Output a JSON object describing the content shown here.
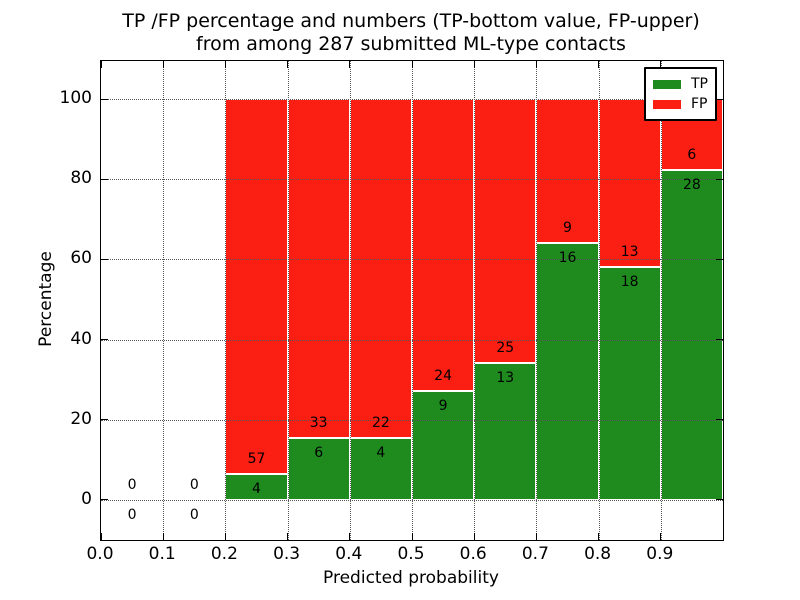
{
  "title": {
    "line1": "TP /FP percentage and numbers (TP-bottom value, FP-upper)",
    "line2": "from among 287 submitted ML-type contacts"
  },
  "legend": {
    "position": "upper right",
    "items": [
      {
        "label": "TP",
        "color": "#1f8b1f"
      },
      {
        "label": "FP",
        "color": "#fb1e13"
      }
    ]
  },
  "chart_data": {
    "type": "bar",
    "stacked": true,
    "title": "TP /FP percentage and numbers (TP-bottom value, FP-upper) from among 287 submitted ML-type contacts",
    "xlabel": "Predicted probability",
    "ylabel": "Percentage",
    "total_contacts": 287,
    "xlim": [
      0,
      1.0
    ],
    "ylim": [
      -10,
      109.5
    ],
    "grid": true,
    "bin_width": 0.1,
    "bins": [
      0.0,
      0.1,
      0.2,
      0.3,
      0.4,
      0.5,
      0.6,
      0.7,
      0.8,
      0.9
    ],
    "x_ticks": [
      {
        "value": 0.0,
        "label": "0.0"
      },
      {
        "value": 0.1,
        "label": "0.1"
      },
      {
        "value": 0.2,
        "label": "0.2"
      },
      {
        "value": 0.3,
        "label": "0.3"
      },
      {
        "value": 0.4,
        "label": "0.4"
      },
      {
        "value": 0.5,
        "label": "0.5"
      },
      {
        "value": 0.6,
        "label": "0.6"
      },
      {
        "value": 0.7,
        "label": "0.7"
      },
      {
        "value": 0.8,
        "label": "0.8"
      },
      {
        "value": 0.9,
        "label": "0.9"
      }
    ],
    "y_ticks": [
      {
        "value": 0,
        "label": "0"
      },
      {
        "value": 20,
        "label": "20"
      },
      {
        "value": 40,
        "label": "40"
      },
      {
        "value": 60,
        "label": "60"
      },
      {
        "value": 80,
        "label": "80"
      },
      {
        "value": 100,
        "label": "100"
      }
    ],
    "series": [
      {
        "name": "TP",
        "color": "#1f8b1f",
        "counts": [
          0,
          0,
          4,
          6,
          4,
          9,
          13,
          16,
          18,
          28
        ]
      },
      {
        "name": "FP",
        "color": "#fb1e13",
        "counts": [
          0,
          0,
          57,
          33,
          22,
          24,
          25,
          9,
          13,
          6
        ]
      }
    ],
    "tp_percent": [
      null,
      null,
      6.6,
      15.4,
      15.4,
      27.3,
      34.2,
      64.0,
      58.1,
      82.4
    ]
  }
}
